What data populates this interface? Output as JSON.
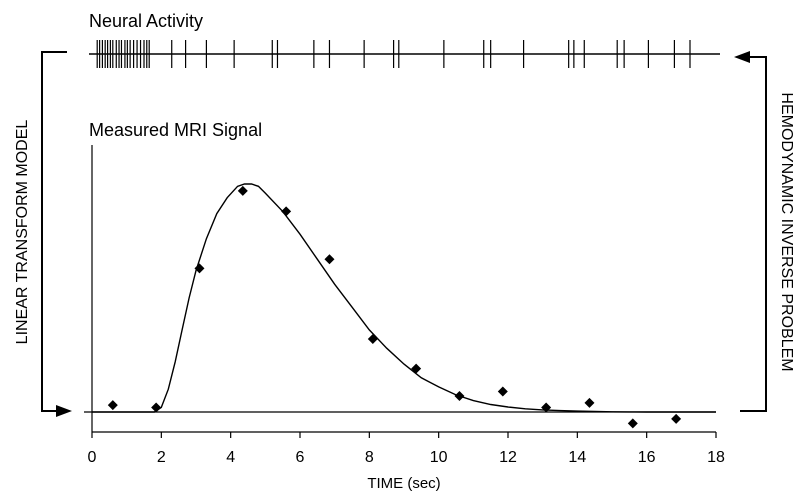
{
  "chart_data": [
    {
      "type": "event_raster",
      "title": "Neural Activity",
      "spike_times": [
        0.15,
        0.22,
        0.3,
        0.38,
        0.45,
        0.53,
        0.6,
        0.7,
        0.78,
        0.85,
        0.95,
        1.02,
        1.1,
        1.2,
        1.3,
        1.4,
        1.5,
        1.58,
        1.65,
        2.3,
        2.7,
        3.3,
        4.1,
        5.2,
        5.35,
        6.4,
        6.85,
        7.85,
        8.7,
        8.85,
        10.15,
        11.3,
        11.5,
        12.45,
        13.75,
        13.9,
        14.2,
        15.15,
        15.35,
        16.05,
        16.8,
        17.25
      ],
      "xlim": [
        0,
        18
      ]
    },
    {
      "type": "scatter",
      "title": "Measured MRI Signal",
      "xlabel": "TIME (sec)",
      "ylabel": "",
      "xlim": [
        0,
        18
      ],
      "ylim": [
        -0.08,
        1.05
      ],
      "xticks": [
        "0",
        "2",
        "4",
        "6",
        "8",
        "10",
        "12",
        "14",
        "16",
        "18"
      ],
      "grid": false,
      "series": [
        {
          "kind": "points",
          "x": [
            0.6,
            1.85,
            3.1,
            4.35,
            5.6,
            6.85,
            8.1,
            9.35,
            10.6,
            11.85,
            13.1,
            14.35,
            15.6,
            16.85
          ],
          "y": [
            0.03,
            0.02,
            0.63,
            0.97,
            0.88,
            0.67,
            0.32,
            0.19,
            0.07,
            0.09,
            0.02,
            0.04,
            -0.05,
            -0.03
          ]
        },
        {
          "kind": "line",
          "x": [
            0,
            1.8,
            2.0,
            2.2,
            2.4,
            2.6,
            2.8,
            3.0,
            3.3,
            3.6,
            3.9,
            4.2,
            4.4,
            4.6,
            4.8,
            5.0,
            5.5,
            6.0,
            6.5,
            7.0,
            7.5,
            8.0,
            8.5,
            9.0,
            9.5,
            10.0,
            10.5,
            11.0,
            11.5,
            12.0,
            12.5,
            13.0,
            13.5,
            14.0,
            14.5,
            15.0,
            15.5,
            16.0,
            18.0
          ],
          "y": [
            0,
            0,
            0.02,
            0.1,
            0.22,
            0.36,
            0.5,
            0.62,
            0.76,
            0.87,
            0.94,
            0.99,
            1.0,
            1.0,
            0.99,
            0.96,
            0.88,
            0.78,
            0.67,
            0.56,
            0.46,
            0.36,
            0.28,
            0.21,
            0.15,
            0.11,
            0.075,
            0.05,
            0.033,
            0.022,
            0.014,
            0.009,
            0.006,
            0.004,
            0.002,
            0.001,
            0.0005,
            0,
            0
          ]
        }
      ]
    }
  ],
  "side_labels": {
    "left": "LINEAR TRANSFORM MODEL",
    "right": "HEMODYNAMIC INVERSE PROBLEM"
  }
}
